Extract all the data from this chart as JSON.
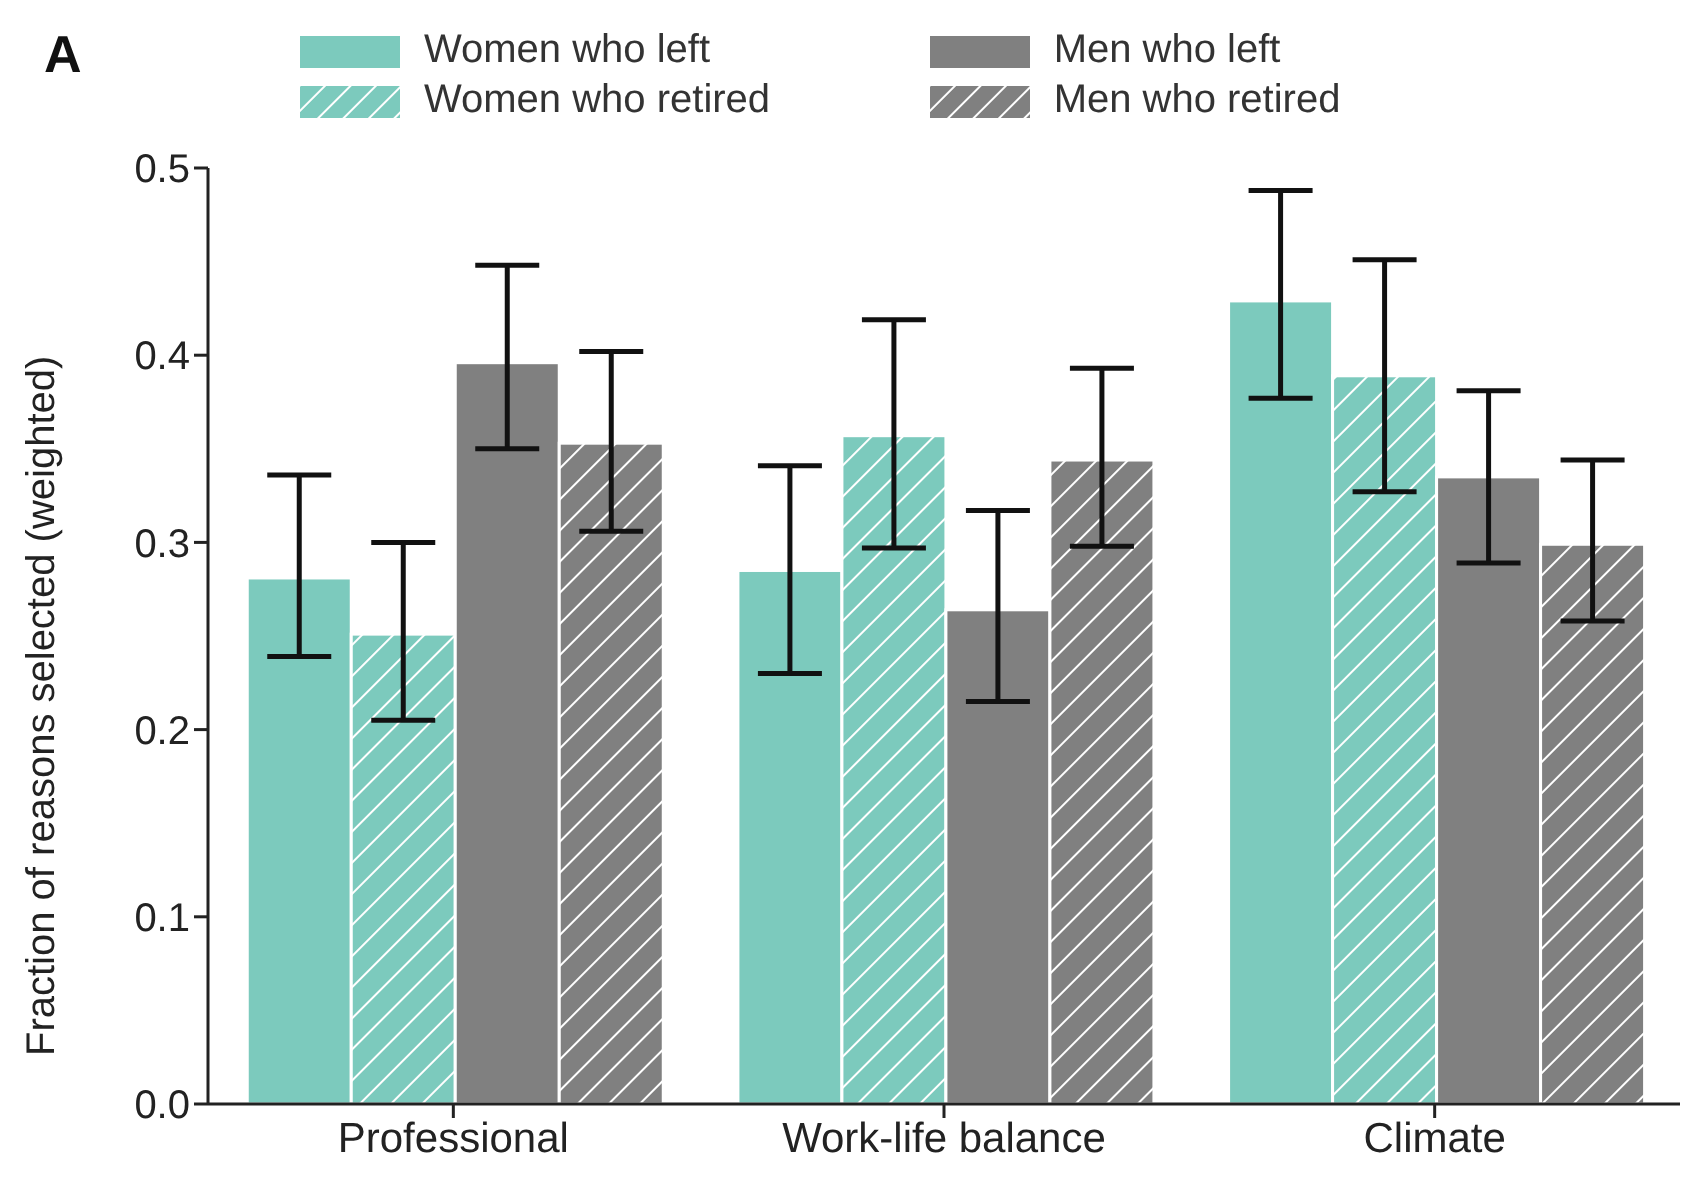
{
  "chart_data": {
    "type": "bar",
    "title": "A",
    "ylabel": "Fraction of reasons selected (weighted)",
    "categories": [
      "Professional",
      "Work-life balance",
      "Climate"
    ],
    "series": [
      {
        "name": "Women who left",
        "color": "#7ccabd",
        "values": [
          0.281,
          0.285,
          0.429
        ],
        "errors": [
          [
            0.239,
            0.336
          ],
          [
            0.23,
            0.341
          ],
          [
            0.377,
            0.488
          ]
        ]
      },
      {
        "name": "Women who retired",
        "color": "#7ccabd",
        "values": [
          0.251,
          0.357,
          0.389
        ],
        "errors": [
          [
            0.205,
            0.3
          ],
          [
            0.297,
            0.419
          ],
          [
            0.327,
            0.451
          ]
        ]
      },
      {
        "name": "Men who left",
        "color": "#808080",
        "values": [
          0.396,
          0.264,
          0.335
        ],
        "errors": [
          [
            0.35,
            0.448
          ],
          [
            0.215,
            0.317
          ],
          [
            0.289,
            0.381
          ]
        ]
      },
      {
        "name": "Men who retired",
        "color": "#808080",
        "values": [
          0.353,
          0.344,
          0.299
        ],
        "errors": [
          [
            0.306,
            0.402
          ],
          [
            0.298,
            0.393
          ],
          [
            0.258,
            0.344
          ]
        ]
      }
    ],
    "ylim": [
      0,
      0.5
    ],
    "yticks": [
      {
        "value": 0,
        "label": "0.0"
      },
      0.1,
      0.2,
      0.3,
      0.4,
      0.5
    ],
    "grid": false,
    "legend": "top"
  }
}
